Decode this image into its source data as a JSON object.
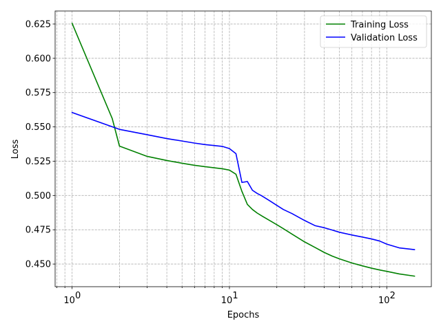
{
  "chart_data": {
    "type": "line",
    "xscale": "log",
    "xlabel": "Epochs",
    "ylabel": "Loss",
    "xlim": [
      0.78,
      192
    ],
    "ylim": [
      0.4335,
      0.6345
    ],
    "grid": true,
    "grid_which": "both",
    "legend_position": "top-right",
    "x_ticks": [
      {
        "value": 1,
        "base": "10",
        "exp": "0"
      },
      {
        "value": 10,
        "base": "10",
        "exp": "1"
      },
      {
        "value": 100,
        "base": "10",
        "exp": "2"
      }
    ],
    "y_ticks": [
      "0.450",
      "0.475",
      "0.500",
      "0.525",
      "0.550",
      "0.575",
      "0.600",
      "0.625"
    ],
    "series": [
      {
        "name": "Training Loss",
        "color": "#008000",
        "points": [
          [
            1,
            0.6255
          ],
          [
            1.8,
            0.556
          ],
          [
            2,
            0.536
          ],
          [
            3,
            0.5285
          ],
          [
            4,
            0.5255
          ],
          [
            5,
            0.5235
          ],
          [
            6,
            0.522
          ],
          [
            7,
            0.521
          ],
          [
            8,
            0.5202
          ],
          [
            9,
            0.5195
          ],
          [
            10,
            0.5185
          ],
          [
            11,
            0.5155
          ],
          [
            12,
            0.503
          ],
          [
            13,
            0.4935
          ],
          [
            14,
            0.4898
          ],
          [
            15,
            0.4872
          ],
          [
            16,
            0.4852
          ],
          [
            18,
            0.4818
          ],
          [
            20,
            0.4787
          ],
          [
            22,
            0.4758
          ],
          [
            25,
            0.4718
          ],
          [
            30,
            0.4662
          ],
          [
            35,
            0.4621
          ],
          [
            40,
            0.4585
          ],
          [
            45,
            0.4558
          ],
          [
            50,
            0.4538
          ],
          [
            60,
            0.4508
          ],
          [
            70,
            0.4487
          ],
          [
            80,
            0.447
          ],
          [
            90,
            0.4457
          ],
          [
            100,
            0.4447
          ],
          [
            120,
            0.4428
          ],
          [
            150,
            0.4412
          ]
        ]
      },
      {
        "name": "Validation Loss",
        "color": "#0000ff",
        "points": [
          [
            1,
            0.5605
          ],
          [
            2,
            0.5482
          ],
          [
            3,
            0.5443
          ],
          [
            4,
            0.5415
          ],
          [
            5,
            0.5397
          ],
          [
            6,
            0.5382
          ],
          [
            7,
            0.5371
          ],
          [
            8,
            0.5364
          ],
          [
            9,
            0.5358
          ],
          [
            10,
            0.5342
          ],
          [
            11,
            0.5305
          ],
          [
            12,
            0.5095
          ],
          [
            13,
            0.5102
          ],
          [
            14,
            0.5038
          ],
          [
            15,
            0.5015
          ],
          [
            16,
            0.4998
          ],
          [
            18,
            0.4962
          ],
          [
            20,
            0.4928
          ],
          [
            22,
            0.4898
          ],
          [
            25,
            0.4868
          ],
          [
            30,
            0.4818
          ],
          [
            35,
            0.478
          ],
          [
            40,
            0.4765
          ],
          [
            45,
            0.4748
          ],
          [
            50,
            0.4732
          ],
          [
            60,
            0.4712
          ],
          [
            70,
            0.4697
          ],
          [
            80,
            0.4683
          ],
          [
            90,
            0.4668
          ],
          [
            100,
            0.4645
          ],
          [
            120,
            0.4618
          ],
          [
            150,
            0.4605
          ]
        ]
      }
    ]
  }
}
